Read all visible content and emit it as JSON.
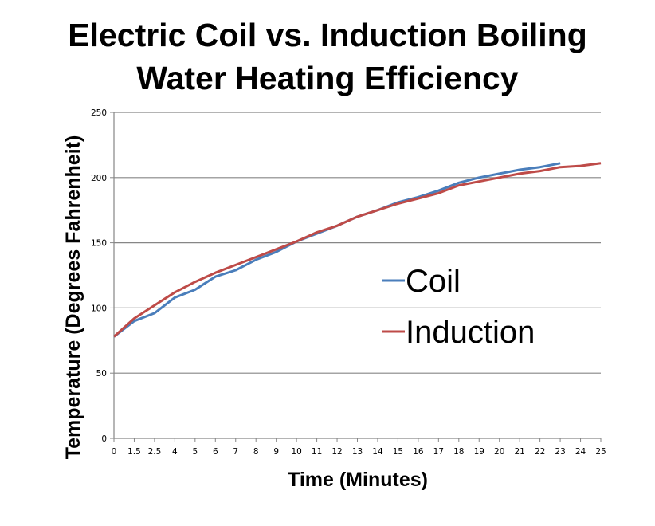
{
  "chart_data": {
    "type": "line",
    "title_lines": [
      "Electric Coil vs. Induction Boiling",
      "Water Heating Efficiency"
    ],
    "xlabel": "Time (Minutes)",
    "ylabel": "Temperature (Degrees Fahrenheit)",
    "categories": [
      "0",
      "1.5",
      "2.5",
      "4",
      "5",
      "6",
      "7",
      "8",
      "9",
      "10",
      "11",
      "12",
      "13",
      "14",
      "15",
      "16",
      "17",
      "18",
      "19",
      "20",
      "21",
      "22",
      "23",
      "24",
      "25"
    ],
    "ylim": [
      0,
      250
    ],
    "yticks": [
      "0",
      "50",
      "100",
      "150",
      "200",
      "250"
    ],
    "grid": true,
    "legend_placement": "center-right",
    "series": [
      {
        "name": "Coil",
        "color": "#4a7ebb",
        "values": [
          78,
          90,
          96,
          108,
          114,
          124,
          129,
          137,
          143,
          151,
          157,
          163,
          170,
          175,
          181,
          185,
          190,
          196,
          200,
          203,
          206,
          208,
          211,
          null,
          null
        ]
      },
      {
        "name": "Induction",
        "color": "#be4b48",
        "values": [
          78,
          92,
          102,
          112,
          120,
          127,
          133,
          139,
          145,
          151,
          158,
          163,
          170,
          175,
          180,
          184,
          188,
          194,
          197,
          200,
          203,
          205,
          208,
          209,
          211
        ]
      }
    ]
  }
}
